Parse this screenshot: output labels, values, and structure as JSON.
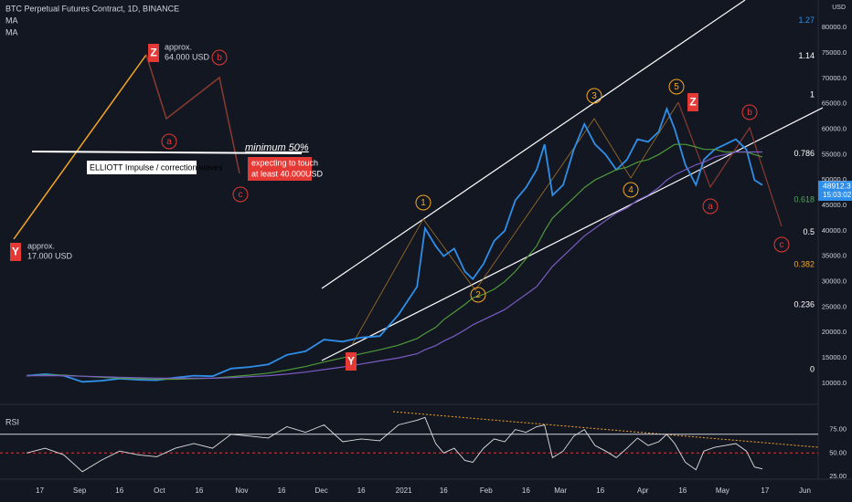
{
  "chart_data": [
    {
      "type": "line",
      "title": "BTC Perpetual Futures Contract, 1D, BINANCE",
      "x": [
        -5,
        2,
        9,
        16,
        23,
        30,
        37,
        44,
        51,
        58,
        65,
        72,
        79,
        86,
        93,
        100,
        107,
        114,
        121,
        128,
        135,
        142,
        145,
        149,
        152,
        156,
        160,
        163,
        167,
        171,
        175,
        179,
        183,
        187,
        190,
        193,
        197,
        201,
        205,
        209,
        213,
        217,
        221,
        225,
        229,
        233,
        236,
        239,
        243,
        247,
        250,
        254,
        258,
        262,
        266,
        269,
        272
      ],
      "series": [
        {
          "color": "#2f8fe8",
          "values": [
            11500,
            11800,
            11500,
            10300,
            10500,
            10900,
            10700,
            10600,
            11100,
            11500,
            11400,
            12900,
            13200,
            13700,
            15600,
            16300,
            18600,
            18200,
            19000,
            19300,
            23500,
            29000,
            40500,
            37000,
            35000,
            36500,
            32000,
            30500,
            33500,
            38000,
            40000,
            46000,
            48500,
            52000,
            57000,
            47000,
            49000,
            56000,
            61000,
            57000,
            55000,
            52000,
            54000,
            58000,
            57500,
            59500,
            64000,
            60000,
            53000,
            49000,
            54000,
            56000,
            57000,
            58000,
            56000,
            50000,
            49000
          ]
        },
        {
          "name": "MA",
          "color": "#4e9a3a",
          "values": [
            11500,
            11600,
            11600,
            11400,
            11200,
            11000,
            10900,
            10800,
            10800,
            10900,
            11000,
            11300,
            11600,
            12000,
            12600,
            13300,
            14200,
            15000,
            15800,
            16600,
            17500,
            18800,
            19800,
            21000,
            22500,
            24000,
            25500,
            26800,
            27500,
            28500,
            30000,
            32000,
            34500,
            37000,
            40000,
            42500,
            44500,
            46500,
            48500,
            50000,
            51000,
            52000,
            52500,
            53500,
            54000,
            55000,
            56000,
            57000,
            57000,
            56500,
            56000,
            56000,
            55500,
            55500,
            55500,
            55000,
            54500
          ]
        },
        {
          "name": "MA",
          "color": "#7b5cc4",
          "values": [
            11500,
            11500,
            11500,
            11400,
            11300,
            11200,
            11100,
            11000,
            11000,
            11000,
            11000,
            11100,
            11300,
            11500,
            11800,
            12200,
            12700,
            13200,
            13800,
            14400,
            15000,
            15800,
            16600,
            17400,
            18300,
            19300,
            20500,
            21500,
            22500,
            23500,
            24500,
            26000,
            27500,
            29000,
            31000,
            33000,
            35000,
            37000,
            39000,
            40500,
            42000,
            43500,
            44500,
            46000,
            47000,
            48500,
            50000,
            51000,
            52000,
            53000,
            53500,
            54500,
            55000,
            55500,
            55500,
            55500,
            55500
          ]
        }
      ],
      "xlim": [
        -15,
        293
      ],
      "ylim": [
        6400,
        85400
      ],
      "yticks": [
        {
          "value": 10000,
          "label": "10000.0"
        },
        {
          "value": 15000,
          "label": "15000.0"
        },
        {
          "value": 20000,
          "label": "20000.0"
        },
        {
          "value": 25000,
          "label": "25000.0"
        },
        {
          "value": 30000,
          "label": "30000.0"
        },
        {
          "value": 35000,
          "label": "35000.0"
        },
        {
          "value": 40000,
          "label": "40000.0"
        },
        {
          "value": 45000,
          "label": "45000.0"
        },
        {
          "value": 50000,
          "label": "50000.0"
        },
        {
          "value": 55000,
          "label": "55000.0"
        },
        {
          "value": 60000,
          "label": "60000.0"
        },
        {
          "value": 65000,
          "label": "65000.0"
        },
        {
          "value": 70000,
          "label": "70000.0"
        },
        {
          "value": 75000,
          "label": "75000.0"
        },
        {
          "value": 80000,
          "label": "80000.0"
        }
      ],
      "grid": false,
      "axis_unit": "USD",
      "last_price": 48912.3,
      "last_time": "15:03:02",
      "fib_levels": [
        1.27,
        1.14,
        1,
        0.786,
        0.618,
        0.5,
        0.382,
        0.236,
        0
      ],
      "fib_colors": [
        "#2f8fe8",
        "#ffffff",
        "#ffffff",
        "#ffffff",
        "#4caf50",
        "#ffffff",
        "#f5a623",
        "#ffffff",
        "#ffffff"
      ],
      "wave_labels": [
        "Z",
        "a",
        "b",
        "c",
        "Y",
        "1",
        "2",
        "3",
        "4",
        "5",
        "Z",
        "a",
        "b",
        "c",
        "Y"
      ],
      "annotations": [
        "approx.",
        "64.000 USD",
        "approx.",
        "17.000 USD",
        "minimum 50%",
        "ELLIOTT Impulse / correction waves",
        "expecting to touch",
        "at least 40.000USD"
      ]
    },
    {
      "type": "line",
      "title": "RSI",
      "x": [
        -5,
        2,
        9,
        16,
        23,
        30,
        37,
        44,
        51,
        58,
        65,
        72,
        79,
        86,
        93,
        100,
        107,
        114,
        121,
        128,
        135,
        142,
        145,
        149,
        152,
        156,
        160,
        163,
        167,
        171,
        175,
        179,
        183,
        187,
        190,
        193,
        197,
        201,
        205,
        209,
        213,
        217,
        221,
        225,
        229,
        233,
        236,
        239,
        243,
        247,
        250,
        254,
        258,
        262,
        266,
        269,
        272
      ],
      "values": [
        50,
        55,
        48,
        30,
        42,
        52,
        48,
        46,
        55,
        60,
        55,
        70,
        68,
        66,
        78,
        72,
        80,
        62,
        65,
        63,
        80,
        85,
        88,
        60,
        50,
        55,
        42,
        40,
        55,
        65,
        62,
        75,
        72,
        78,
        80,
        45,
        52,
        68,
        75,
        58,
        52,
        45,
        55,
        66,
        58,
        62,
        70,
        60,
        40,
        32,
        52,
        56,
        58,
        60,
        52,
        35,
        33
      ],
      "color": "#e0e0e0",
      "xlim": [
        -15,
        293
      ],
      "ylim": [
        22,
        99
      ],
      "yticks": [
        {
          "value": 75,
          "label": "75.00"
        },
        {
          "value": 50,
          "label": "50.00"
        },
        {
          "value": 25,
          "label": "25.00"
        }
      ],
      "levels": [
        70,
        50
      ],
      "xticks": [
        {
          "value": 0,
          "label": "17"
        },
        {
          "value": 15,
          "label": "Sep"
        },
        {
          "value": 30,
          "label": "16"
        },
        {
          "value": 45,
          "label": "Oct"
        },
        {
          "value": 60,
          "label": "16"
        },
        {
          "value": 76,
          "label": "Nov"
        },
        {
          "value": 91,
          "label": "16"
        },
        {
          "value": 106,
          "label": "Dec"
        },
        {
          "value": 121,
          "label": "16"
        },
        {
          "value": 137,
          "label": "2021"
        },
        {
          "value": 152,
          "label": "16"
        },
        {
          "value": 168,
          "label": "Feb"
        },
        {
          "value": 183,
          "label": "16"
        },
        {
          "value": 196,
          "label": "Mar"
        },
        {
          "value": 211,
          "label": "16"
        },
        {
          "value": 227,
          "label": "Apr"
        },
        {
          "value": 242,
          "label": "16"
        },
        {
          "value": 257,
          "label": "May"
        },
        {
          "value": 273,
          "label": "17"
        },
        {
          "value": 288,
          "label": "Jun"
        }
      ]
    }
  ]
}
